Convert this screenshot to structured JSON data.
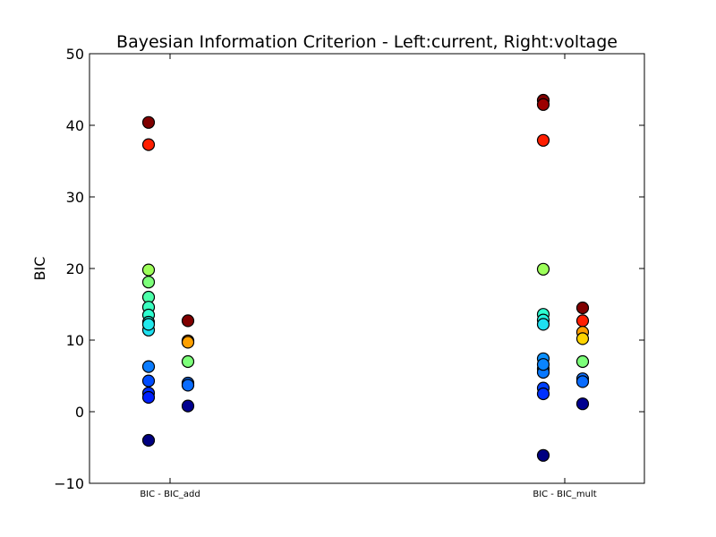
{
  "chart_data": {
    "type": "scatter",
    "title": "Bayesian Information Criterion - Left:current, Right:voltage",
    "xlabel": "",
    "ylabel": "BIC",
    "ylim": [
      -10,
      50
    ],
    "yticks": [
      -10,
      0,
      10,
      20,
      30,
      40,
      50
    ],
    "ytick_labels": [
      "−10",
      "0",
      "10",
      "20",
      "30",
      "40",
      "50"
    ],
    "categories": [
      "BIC - BIC_add",
      "BIC - BIC_mult"
    ],
    "grid": false,
    "series": [
      {
        "group": 0,
        "side": "left",
        "points": [
          {
            "y": 40.4,
            "color": "#800000"
          },
          {
            "y": 37.3,
            "color": "#ff1e00"
          },
          {
            "y": 19.8,
            "color": "#9dff5a"
          },
          {
            "y": 18.1,
            "color": "#7dff7a"
          },
          {
            "y": 16.0,
            "color": "#4dffaa"
          },
          {
            "y": 14.6,
            "color": "#3affc0"
          },
          {
            "y": 13.5,
            "color": "#2effd0"
          },
          {
            "y": 12.5,
            "color": "#24f4e0"
          },
          {
            "y": 11.4,
            "color": "#1ee0f0"
          },
          {
            "y": 12.2,
            "color": "#22e8ec"
          },
          {
            "y": 6.3,
            "color": "#0a7cff"
          },
          {
            "y": 4.3,
            "color": "#004cff"
          },
          {
            "y": 2.6,
            "color": "#0030ff"
          },
          {
            "y": 2.0,
            "color": "#0020ff"
          },
          {
            "y": -4.0,
            "color": "#000080"
          }
        ]
      },
      {
        "group": 0,
        "side": "right",
        "points": [
          {
            "y": 12.7,
            "color": "#800000"
          },
          {
            "y": 9.9,
            "color": "#ff8c00"
          },
          {
            "y": 9.7,
            "color": "#ffa000"
          },
          {
            "y": 7.0,
            "color": "#7dff7a"
          },
          {
            "y": 4.0,
            "color": "#1070ff"
          },
          {
            "y": 3.7,
            "color": "#0a6cff"
          },
          {
            "y": 0.8,
            "color": "#000090"
          }
        ]
      },
      {
        "group": 1,
        "side": "left",
        "points": [
          {
            "y": 43.5,
            "color": "#800000"
          },
          {
            "y": 42.9,
            "color": "#9c0000"
          },
          {
            "y": 37.9,
            "color": "#ff1e00"
          },
          {
            "y": 19.9,
            "color": "#9dff5a"
          },
          {
            "y": 13.6,
            "color": "#2effd0"
          },
          {
            "y": 12.8,
            "color": "#24f4e0"
          },
          {
            "y": 12.2,
            "color": "#1ee0f0"
          },
          {
            "y": 7.4,
            "color": "#0a90ff"
          },
          {
            "y": 6.0,
            "color": "#0a7cff"
          },
          {
            "y": 5.5,
            "color": "#0878ff"
          },
          {
            "y": 6.6,
            "color": "#0a84ff"
          },
          {
            "y": 3.3,
            "color": "#0040ff"
          },
          {
            "y": 2.5,
            "color": "#0030ff"
          },
          {
            "y": -6.1,
            "color": "#000080"
          }
        ]
      },
      {
        "group": 1,
        "side": "right",
        "points": [
          {
            "y": 14.5,
            "color": "#800000"
          },
          {
            "y": 12.7,
            "color": "#ff1e00"
          },
          {
            "y": 11.1,
            "color": "#ffa000"
          },
          {
            "y": 10.2,
            "color": "#ffd400"
          },
          {
            "y": 7.0,
            "color": "#7dff7a"
          },
          {
            "y": 4.6,
            "color": "#1070ff"
          },
          {
            "y": 4.2,
            "color": "#0a6cff"
          },
          {
            "y": 1.1,
            "color": "#000090"
          }
        ]
      }
    ]
  }
}
